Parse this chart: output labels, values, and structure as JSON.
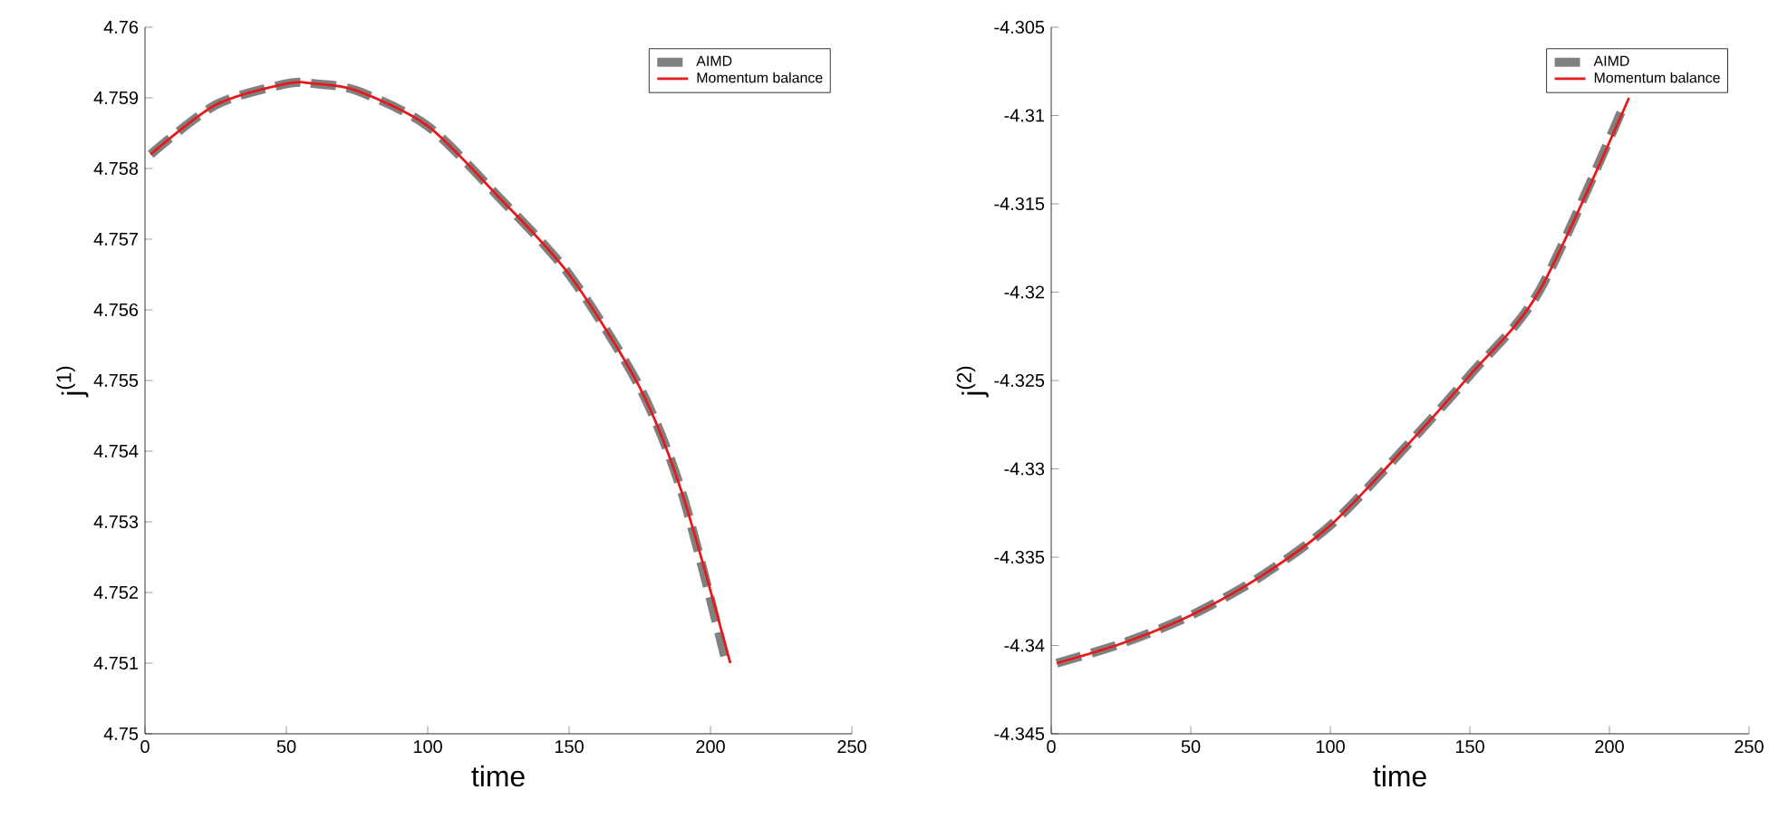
{
  "chart_data": [
    {
      "type": "line",
      "xlabel": "time",
      "ylabel": "j$^{(1)}$",
      "xlim": [
        0,
        250
      ],
      "xticks": [
        0,
        50,
        100,
        150,
        200,
        250
      ],
      "ylim": [
        4.75,
        4.76
      ],
      "yticks": [
        4.75,
        4.751,
        4.752,
        4.753,
        4.754,
        4.755,
        4.756,
        4.757,
        4.758,
        4.759,
        4.76
      ],
      "grid": false,
      "legend": "top right",
      "series": [
        {
          "name": "AIMD",
          "color": "#808080",
          "line_style": "dashed",
          "x": [
            2,
            25,
            50,
            60,
            75,
            100,
            125,
            150,
            175,
            190,
            205
          ],
          "values": [
            4.7582,
            4.7589,
            4.7592,
            4.7592,
            4.7591,
            4.7586,
            4.7576,
            4.7565,
            4.7549,
            4.7534,
            4.7511
          ]
        },
        {
          "name": "Momentum balance",
          "color": "#e41a1c",
          "line_style": "solid",
          "x": [
            2,
            25,
            50,
            60,
            75,
            100,
            125,
            150,
            175,
            190,
            207
          ],
          "values": [
            4.7582,
            4.7589,
            4.7592,
            4.7592,
            4.7591,
            4.7586,
            4.7576,
            4.7565,
            4.7549,
            4.7534,
            4.751
          ]
        }
      ]
    },
    {
      "type": "line",
      "xlabel": "time",
      "ylabel": "j$^{(2)}$",
      "xlim": [
        0,
        250
      ],
      "xticks": [
        0,
        50,
        100,
        150,
        200,
        250
      ],
      "ylim": [
        -4.345,
        -4.305
      ],
      "yticks": [
        -4.345,
        -4.34,
        -4.335,
        -4.33,
        -4.325,
        -4.32,
        -4.315,
        -4.31,
        -4.305
      ],
      "grid": false,
      "legend": "top right",
      "series": [
        {
          "name": "AIMD",
          "color": "#808080",
          "line_style": "dashed",
          "x": [
            2,
            25,
            50,
            75,
            100,
            125,
            150,
            175,
            205
          ],
          "values": [
            -4.341,
            -4.3399,
            -4.3383,
            -4.3361,
            -4.3332,
            -4.3291,
            -4.3247,
            -4.3199,
            -4.3095
          ]
        },
        {
          "name": "Momentum balance",
          "color": "#e41a1c",
          "line_style": "solid",
          "x": [
            2,
            25,
            50,
            75,
            100,
            125,
            150,
            175,
            207
          ],
          "values": [
            -4.341,
            -4.3399,
            -4.3383,
            -4.3361,
            -4.3332,
            -4.3291,
            -4.3247,
            -4.3199,
            -4.309
          ]
        }
      ]
    }
  ]
}
